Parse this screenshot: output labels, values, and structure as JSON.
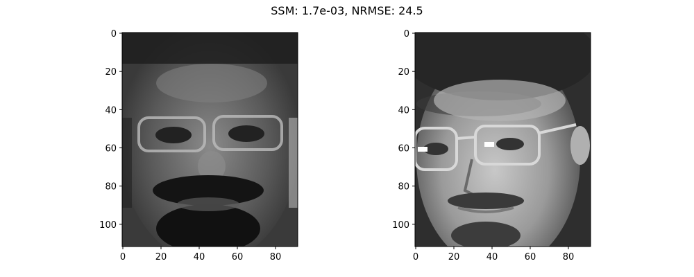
{
  "figure": {
    "suptitle": "SSM: 1.7e-03, NRMSE: 24.5"
  },
  "chart_data": [
    {
      "type": "heatmap",
      "image": "grayscale face reconstruction (left panel)",
      "colormap": "gray",
      "width": 92,
      "height": 112,
      "xlim": [
        0,
        92
      ],
      "ylim": [
        112,
        0
      ],
      "xticks": [
        0,
        20,
        40,
        60,
        80
      ],
      "yticks": [
        0,
        20,
        40,
        60,
        80,
        100
      ],
      "grid": false
    },
    {
      "type": "heatmap",
      "image": "grayscale face photo (right panel)",
      "colormap": "gray",
      "width": 92,
      "height": 112,
      "xlim": [
        0,
        92
      ],
      "ylim": [
        112,
        0
      ],
      "xticks": [
        0,
        20,
        40,
        60,
        80
      ],
      "yticks": [
        0,
        20,
        40,
        60,
        80,
        100
      ],
      "grid": false
    }
  ]
}
